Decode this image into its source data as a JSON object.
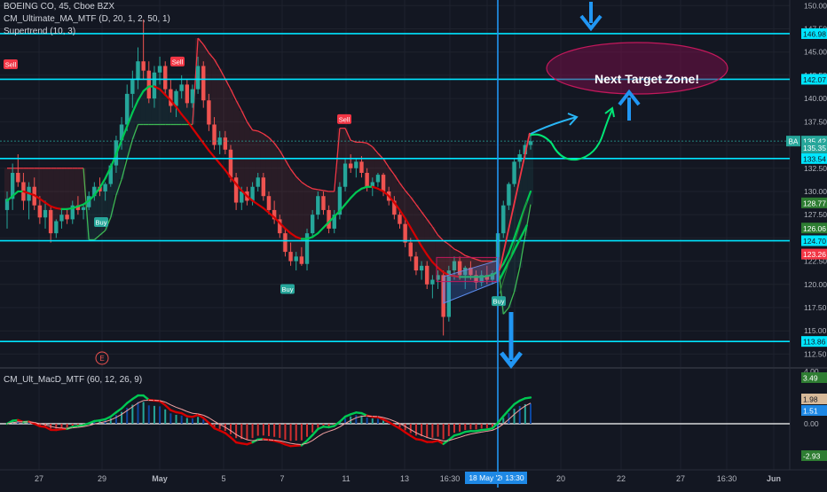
{
  "header": {
    "symbol_line": "BOEING CO, 45, Cboe BZX",
    "indicator_1": "CM_Ultimate_MA_MTF (D, 20, 1, 2, 50, 1)",
    "indicator_2": "Supertrend (10, 3)",
    "macd_title": "CM_Ult_MacD_MTF (60, 12, 26, 9)"
  },
  "annotations": {
    "target_zone": "Next Target Zone!",
    "event_marker": "E",
    "symbol_tag": "BA"
  },
  "colors": {
    "background": "#131722",
    "grid": "#1e222d",
    "level_line": "#00e5ff",
    "bull": "#26a69a",
    "bear": "#ef5350",
    "ma_up": "#00c853",
    "ma_down": "#d50000",
    "arrow": "#2196f3",
    "zone": "#880e4f"
  },
  "chart_data": [
    {
      "type": "candlestick",
      "title": "BOEING CO, 45, Cboe BZX",
      "price_axis": {
        "ticks": [
          "150.00",
          "147.50",
          "145.00",
          "142.50",
          "140.00",
          "137.50",
          "135.00",
          "132.50",
          "130.00",
          "127.50",
          "125.00",
          "122.50",
          "120.00",
          "117.50",
          "115.00",
          "112.50"
        ],
        "range": [
          111.3,
          150.6
        ]
      },
      "time_axis": {
        "labels": [
          "27",
          "29",
          "May",
          "5",
          "7",
          "11",
          "13",
          "16:30",
          "18 May '20",
          "13:30",
          "20",
          "22",
          "27",
          "16:30",
          "Jun"
        ]
      },
      "horizontal_levels": [
        146.98,
        142.07,
        133.54,
        124.7,
        113.86
      ],
      "price_tags": [
        {
          "value": "146.98",
          "style": "level"
        },
        {
          "value": "142.07",
          "style": "level"
        },
        {
          "value": "135.42",
          "style": "symbol"
        },
        {
          "value": "135.35",
          "style": "teal"
        },
        {
          "value": "133.54",
          "style": "level"
        },
        {
          "value": "128.77",
          "style": "green"
        },
        {
          "value": "126.06",
          "style": "green"
        },
        {
          "value": "124.70",
          "style": "level"
        },
        {
          "value": "123.26",
          "style": "red"
        },
        {
          "value": "113.86",
          "style": "level"
        }
      ],
      "signals": [
        {
          "label": "Sell",
          "type": "sell",
          "price": 142.3
        },
        {
          "label": "Sell",
          "type": "sell",
          "price": 142.6
        },
        {
          "label": "Buy",
          "type": "buy",
          "price": 127.8
        },
        {
          "label": "Sell",
          "type": "sell",
          "price": 136.4
        },
        {
          "label": "Buy",
          "type": "buy",
          "price": 120.6
        },
        {
          "label": "Buy",
          "type": "buy",
          "price": 119.3
        }
      ],
      "candles_ohlc": [
        [
          128.0,
          130.0,
          126.0,
          129.2
        ],
        [
          129.2,
          133.0,
          128.0,
          132.0
        ],
        [
          132.0,
          134.0,
          130.5,
          131.0
        ],
        [
          131.0,
          132.0,
          128.0,
          129.0
        ],
        [
          129.0,
          131.0,
          127.0,
          130.5
        ],
        [
          130.5,
          131.5,
          128.0,
          128.5
        ],
        [
          128.5,
          129.5,
          126.5,
          127.2
        ],
        [
          127.2,
          129.0,
          126.0,
          128.0
        ],
        [
          128.0,
          128.5,
          124.5,
          125.5
        ],
        [
          125.5,
          127.0,
          125.0,
          126.8
        ],
        [
          126.8,
          128.0,
          126.0,
          127.5
        ],
        [
          127.5,
          128.0,
          126.5,
          127.0
        ],
        [
          127.0,
          129.0,
          126.5,
          128.5
        ],
        [
          128.5,
          129.5,
          127.5,
          128.0
        ],
        [
          128.0,
          128.5,
          127.0,
          128.3
        ],
        [
          128.3,
          130.0,
          128.0,
          129.5
        ],
        [
          129.5,
          131.0,
          129.0,
          130.5
        ],
        [
          130.5,
          131.5,
          129.5,
          130.0
        ],
        [
          130.0,
          131.0,
          129.0,
          130.8
        ],
        [
          130.8,
          133.0,
          130.5,
          132.8
        ],
        [
          132.8,
          136.0,
          132.0,
          135.5
        ],
        [
          135.5,
          138.0,
          134.5,
          137.2
        ],
        [
          137.2,
          141.5,
          136.5,
          140.5
        ],
        [
          140.5,
          143.0,
          139.0,
          142.0
        ],
        [
          142.0,
          145.5,
          141.0,
          144.0
        ],
        [
          144.0,
          148.5,
          142.0,
          143.0
        ],
        [
          143.0,
          144.0,
          139.5,
          140.0
        ],
        [
          140.0,
          143.5,
          139.0,
          142.8
        ],
        [
          142.8,
          144.5,
          141.5,
          143.5
        ],
        [
          143.5,
          144.0,
          140.5,
          141.0
        ],
        [
          141.0,
          142.0,
          138.5,
          139.2
        ],
        [
          139.2,
          141.0,
          138.0,
          140.8
        ],
        [
          140.8,
          142.5,
          140.0,
          141.5
        ],
        [
          141.5,
          142.0,
          139.0,
          139.5
        ],
        [
          139.5,
          141.5,
          139.0,
          141.0
        ],
        [
          141.0,
          144.5,
          140.5,
          143.5
        ],
        [
          143.5,
          144.0,
          139.0,
          139.8
        ],
        [
          139.8,
          140.5,
          136.5,
          137.2
        ],
        [
          137.2,
          138.0,
          134.5,
          135.0
        ],
        [
          135.0,
          136.5,
          134.0,
          135.8
        ],
        [
          135.8,
          136.5,
          134.0,
          134.5
        ],
        [
          134.5,
          135.0,
          131.0,
          131.5
        ],
        [
          131.5,
          132.0,
          128.0,
          128.8
        ],
        [
          128.8,
          130.5,
          128.0,
          130.0
        ],
        [
          130.0,
          130.5,
          128.5,
          129.0
        ],
        [
          129.0,
          131.0,
          128.5,
          130.5
        ],
        [
          130.5,
          132.0,
          130.0,
          131.5
        ],
        [
          131.5,
          132.0,
          129.0,
          129.5
        ],
        [
          129.5,
          130.0,
          127.5,
          128.0
        ],
        [
          128.0,
          129.0,
          126.5,
          127.0
        ],
        [
          127.0,
          127.5,
          125.0,
          125.5
        ],
        [
          125.5,
          126.0,
          123.0,
          123.5
        ],
        [
          123.5,
          124.5,
          122.0,
          122.5
        ],
        [
          122.5,
          123.5,
          121.5,
          123.0
        ],
        [
          123.0,
          124.0,
          122.0,
          122.2
        ],
        [
          122.2,
          126.0,
          121.5,
          125.5
        ],
        [
          125.5,
          128.0,
          125.0,
          127.5
        ],
        [
          127.5,
          130.0,
          127.0,
          129.5
        ],
        [
          129.5,
          130.0,
          127.5,
          128.0
        ],
        [
          128.0,
          128.5,
          125.5,
          126.0
        ],
        [
          126.0,
          128.0,
          125.5,
          127.5
        ],
        [
          127.5,
          131.0,
          127.0,
          130.5
        ],
        [
          130.5,
          133.5,
          130.0,
          133.0
        ],
        [
          133.0,
          134.0,
          132.0,
          132.5
        ],
        [
          132.5,
          133.5,
          131.5,
          133.2
        ],
        [
          133.2,
          133.8,
          131.5,
          132.0
        ],
        [
          132.0,
          132.5,
          130.0,
          130.5
        ],
        [
          130.5,
          131.5,
          129.5,
          131.0
        ],
        [
          131.0,
          132.0,
          130.5,
          131.8
        ],
        [
          131.8,
          132.0,
          129.5,
          130.0
        ],
        [
          130.0,
          130.5,
          128.5,
          129.0
        ],
        [
          129.0,
          129.5,
          127.0,
          127.5
        ],
        [
          127.5,
          128.0,
          126.0,
          126.5
        ],
        [
          126.5,
          127.0,
          124.0,
          124.5
        ],
        [
          124.5,
          125.0,
          122.5,
          123.0
        ],
        [
          123.0,
          123.5,
          121.0,
          121.5
        ],
        [
          121.5,
          122.5,
          120.5,
          122.0
        ],
        [
          122.0,
          122.5,
          119.5,
          120.0
        ],
        [
          120.0,
          121.0,
          118.5,
          120.5
        ],
        [
          120.5,
          121.5,
          119.5,
          121.0
        ],
        [
          121.0,
          121.5,
          114.5,
          116.5
        ],
        [
          116.5,
          122.0,
          116.0,
          121.5
        ],
        [
          121.5,
          123.0,
          120.5,
          122.5
        ],
        [
          122.5,
          123.0,
          120.5,
          121.0
        ],
        [
          121.0,
          122.0,
          119.5,
          121.8
        ],
        [
          121.8,
          122.5,
          120.5,
          121.0
        ],
        [
          121.0,
          121.5,
          119.5,
          120.2
        ],
        [
          120.2,
          121.5,
          119.8,
          121.0
        ],
        [
          121.0,
          122.0,
          120.0,
          120.5
        ],
        [
          120.5,
          121.5,
          120.0,
          121.2
        ],
        [
          121.2,
          126.0,
          121.0,
          125.5
        ],
        [
          125.5,
          129.0,
          125.0,
          128.5
        ],
        [
          128.5,
          131.0,
          128.0,
          130.8
        ],
        [
          130.8,
          133.5,
          130.5,
          133.2
        ],
        [
          133.2,
          134.5,
          132.5,
          134.0
        ],
        [
          134.0,
          135.5,
          133.5,
          135.0
        ],
        [
          135.0,
          136.0,
          134.5,
          135.4
        ]
      ],
      "ma_fast": [
        129,
        129.5,
        130,
        130,
        129.8,
        129.6,
        129.2,
        128.8,
        128.4,
        128.2,
        128.1,
        128.1,
        128.2,
        128.4,
        128.6,
        129,
        129.6,
        130.4,
        131.4,
        132.6,
        134,
        135.5,
        137,
        138.5,
        139.8,
        140.8,
        141.3,
        141.3,
        141,
        140.4,
        139.8,
        139.1,
        138.3,
        137.6,
        136.8,
        136,
        135.2,
        134.4,
        133.7,
        133,
        132.3,
        131.5,
        130.8,
        130.1,
        129.5,
        129,
        128.6,
        128.2,
        127.7,
        127.2,
        126.6,
        126,
        125.5,
        125.1,
        124.9,
        124.9,
        125.1,
        125.5,
        126.1,
        126.7,
        127.3,
        127.9,
        128.6,
        129.3,
        129.9,
        130.3,
        130.5,
        130.5,
        130.3,
        130,
        129.5,
        128.8,
        128,
        127.1,
        126.1,
        125.1,
        124.1,
        123.2,
        122.4,
        121.8,
        121.3,
        121,
        120.9,
        120.8,
        120.8,
        120.8,
        120.8,
        120.8,
        120.9,
        121,
        121.4,
        122.2,
        123.4,
        125,
        126.7,
        128.4,
        130
      ],
      "supertrend": [
        132.5,
        132.5,
        132.5,
        132.5,
        132.5,
        132.5,
        132.5,
        132.5,
        132.5,
        132.5,
        132.5,
        132.5,
        132.5,
        132.5,
        132.5,
        124.8,
        124.8,
        125.3,
        125.8,
        127.2,
        129.6,
        131.3,
        133.5,
        135.6,
        137.2,
        137.2,
        137.2,
        137.2,
        137.2,
        137.2,
        137.2,
        137.2,
        137.2,
        137.2,
        137.2,
        146.5,
        145.8,
        144.9,
        144.2,
        143.2,
        142.1,
        141,
        139.8,
        138.7,
        137.5,
        136.6,
        136.5,
        136.2,
        135.8,
        135.2,
        134.4,
        133.4,
        132.4,
        131.6,
        131,
        130.6,
        130.3,
        130.2,
        130.1,
        130,
        130,
        136.8,
        136.8,
        135.5,
        135.3,
        135.3,
        135.2,
        134.8,
        134.1,
        133.5,
        132.6,
        131.8,
        130.9,
        130.1,
        129.4,
        128.6,
        127.8,
        127,
        126.2,
        125.3,
        124.7,
        124.3,
        123.8,
        123.5,
        123.1,
        122.9,
        122.7,
        122.5,
        122.5,
        122.5,
        122.5,
        116.8,
        117.5,
        119.2,
        121.8,
        125.2,
        128.6
      ],
      "macd": {
        "ticks": [
          "4.00",
          "0.00"
        ],
        "tags": [
          {
            "value": "3.49",
            "style": "green"
          },
          {
            "value": "1.98",
            "style": "beige"
          },
          {
            "value": "1.51",
            "style": "blue"
          },
          {
            "value": "0.00",
            "style": "level"
          },
          {
            "value": "-2.93",
            "style": "green"
          }
        ]
      }
    }
  ]
}
